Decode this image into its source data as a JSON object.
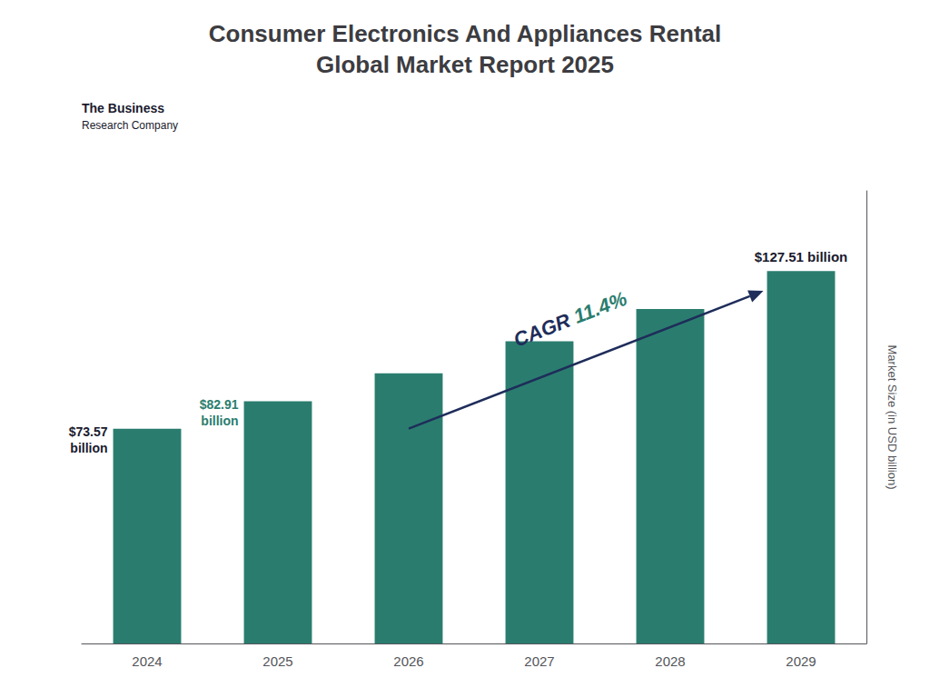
{
  "chart_data": {
    "type": "bar",
    "title": "Consumer Electronics And Appliances Rental\nGlobal Market Report 2025",
    "categories": [
      "2024",
      "2025",
      "2026",
      "2027",
      "2028",
      "2029"
    ],
    "values": [
      73.57,
      82.91,
      92.5,
      103.5,
      114.5,
      127.51
    ],
    "color": "#2a7d6e",
    "ylabel": "Market Size (in USD billion)",
    "ylim": [
      0,
      155
    ],
    "grid": false,
    "tick_labels": "x",
    "annotations": [
      {
        "text": "$73.57\nbillion",
        "category": "2024",
        "color": "#1a1a2e"
      },
      {
        "text": "$82.91\nbillion",
        "category": "2025",
        "color": "#2a7d6e"
      },
      {
        "text": "$127.51 billion",
        "category": "2029",
        "color": "#1a1a2e"
      }
    ],
    "cagr": [
      {
        "text": "CAGR ",
        "color": "#1e2d5a"
      },
      {
        "text": "11.4%",
        "color": "#2a7d6e"
      }
    ],
    "logo": [
      "The Business",
      "Research Company"
    ]
  }
}
